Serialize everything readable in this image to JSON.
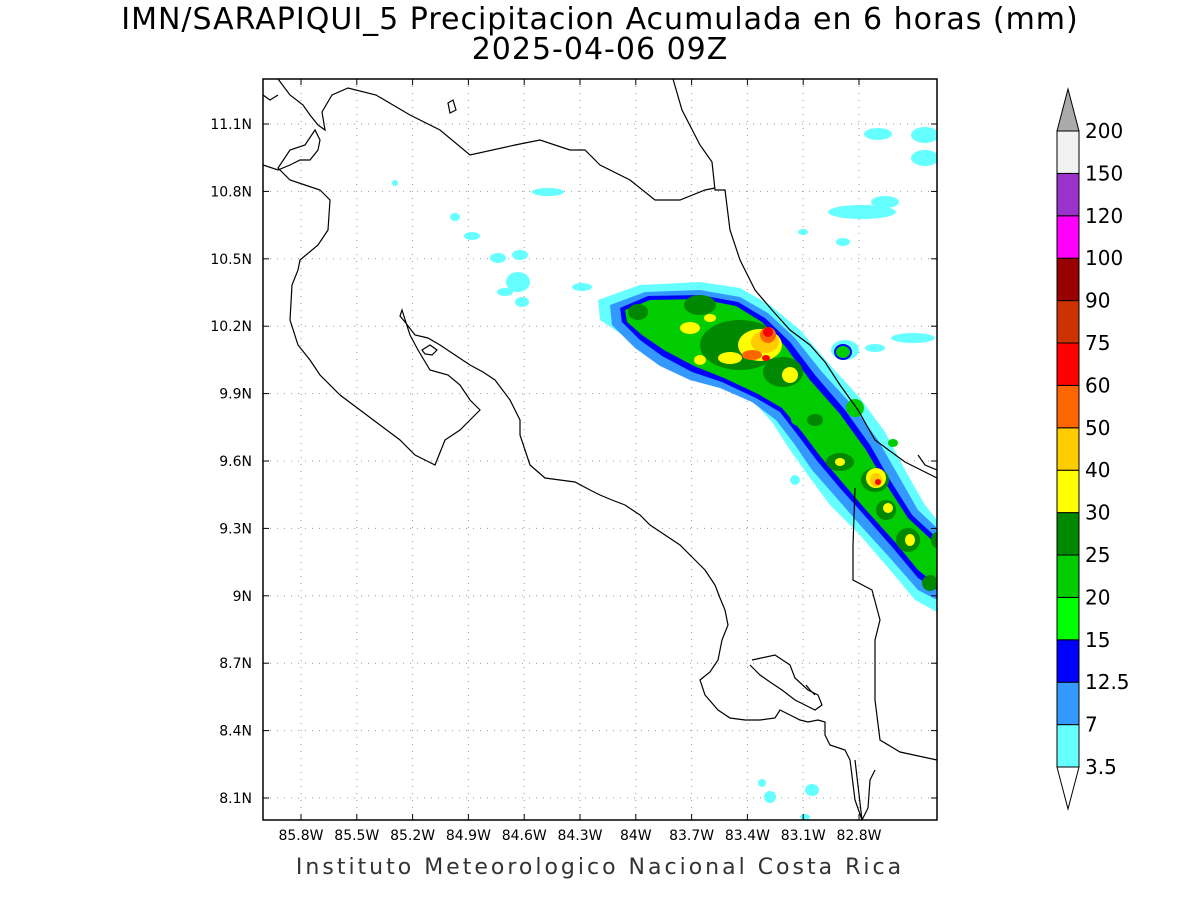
{
  "map": {
    "title_line1": "IMN/SARAPIQUI_5 Precipitacion Acumulada en 6 horas (mm)",
    "title_line2": "2025-04-06 09Z",
    "footer": "Instituto Meteorologico Nacional Costa Rica",
    "lon_labels": [
      "85.8W",
      "85.5W",
      "85.2W",
      "84.9W",
      "84.6W",
      "84.3W",
      "84W",
      "83.7W",
      "83.4W",
      "83.1W",
      "82.8W"
    ],
    "lat_labels": [
      "11.1N",
      "10.8N",
      "10.5N",
      "10.2N",
      "9.9N",
      "9.6N",
      "9.3N",
      "9N",
      "8.7N",
      "8.4N",
      "8.1N"
    ]
  },
  "colorbar": {
    "levels": [
      "3.5",
      "7",
      "12.5",
      "15",
      "20",
      "25",
      "30",
      "40",
      "50",
      "60",
      "75",
      "90",
      "100",
      "120",
      "150",
      "200"
    ],
    "colors": [
      "#66ffff",
      "#3399ff",
      "#0000ff",
      "#00ff00",
      "#00cc00",
      "#008800",
      "#ffff00",
      "#ffcc00",
      "#ff6600",
      "#ff0000",
      "#cc3300",
      "#990000",
      "#ff00ff",
      "#9933cc",
      "#f2f2f2",
      "#aaaaaa"
    ]
  }
}
